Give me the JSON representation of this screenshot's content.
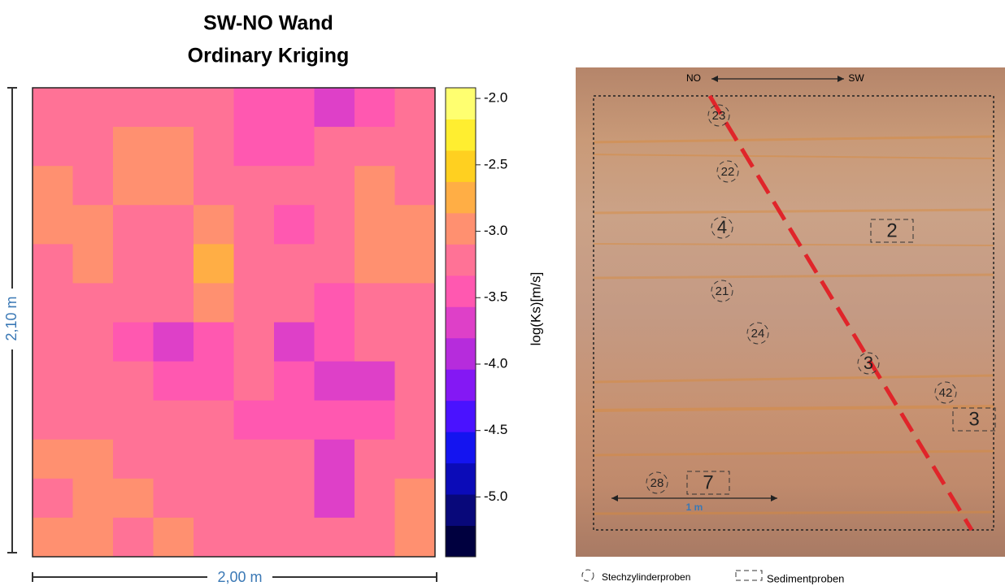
{
  "chart_data": {
    "type": "heatmap",
    "title": "SW-NO Wand",
    "subtitle": "Ordinary Kriging",
    "x_label": "2,00 m",
    "y_label": "2,10 m",
    "values": [
      [
        -3.2,
        -3.3,
        -3.1,
        -3.2,
        -3.3,
        -3.4,
        -3.5,
        -3.6,
        -3.4,
        -3.3
      ],
      [
        -3.1,
        -3.2,
        -3.0,
        -2.9,
        -3.2,
        -3.5,
        -3.4,
        -3.3,
        -3.2,
        -3.2
      ],
      [
        -3.0,
        -3.1,
        -2.9,
        -3.0,
        -3.2,
        -3.3,
        -3.2,
        -3.1,
        -3.0,
        -3.1
      ],
      [
        -2.9,
        -3.0,
        -3.1,
        -3.2,
        -3.0,
        -3.1,
        -3.5,
        -3.2,
        -3.0,
        -2.9
      ],
      [
        -3.1,
        -3.0,
        -3.2,
        -3.1,
        -2.8,
        -3.2,
        -3.3,
        -3.1,
        -2.9,
        -3.0
      ],
      [
        -3.2,
        -3.1,
        -3.3,
        -3.2,
        -2.9,
        -3.3,
        -3.2,
        -3.4,
        -3.2,
        -3.1
      ],
      [
        -3.3,
        -3.2,
        -3.4,
        -3.6,
        -3.4,
        -3.3,
        -3.6,
        -3.5,
        -3.3,
        -3.2
      ],
      [
        -3.2,
        -3.3,
        -3.3,
        -3.5,
        -3.5,
        -3.3,
        -3.5,
        -3.8,
        -3.6,
        -3.3
      ],
      [
        -3.1,
        -3.2,
        -3.3,
        -3.2,
        -3.3,
        -3.4,
        -3.4,
        -3.5,
        -3.4,
        -3.2
      ],
      [
        -3.0,
        -2.9,
        -3.1,
        -3.2,
        -3.3,
        -3.2,
        -3.3,
        -3.6,
        -3.3,
        -3.1
      ],
      [
        -3.1,
        -3.0,
        -2.9,
        -3.1,
        -3.2,
        -3.1,
        -3.3,
        -3.7,
        -3.2,
        -3.0
      ],
      [
        -2.9,
        -3.0,
        -3.1,
        -3.0,
        -3.2,
        -3.1,
        -3.2,
        -3.3,
        -3.1,
        -3.0
      ]
    ],
    "colorbar": {
      "label": "log(Ks)[m/s]",
      "lim": [
        -5.45,
        -1.92
      ],
      "ticks": [
        {
          "value": -2,
          "label": "-2.0"
        },
        {
          "value": -2.5,
          "label": "-2.5"
        },
        {
          "value": -3,
          "label": "-3.0"
        },
        {
          "value": -3.5,
          "label": "-3.5"
        },
        {
          "value": -4,
          "label": "-4.0"
        },
        {
          "value": -4.5,
          "label": "-4.5"
        },
        {
          "value": -5,
          "label": "-5.0"
        }
      ],
      "colors": [
        "#00003f",
        "#08087a",
        "#0b0bb8",
        "#1414f0",
        "#4a12ff",
        "#8418f4",
        "#b62cdc",
        "#de40c8",
        "#ff58b0",
        "#ff7296",
        "#ff9070",
        "#ffae45",
        "#ffd020",
        "#ffee30",
        "#ffff70"
      ]
    }
  },
  "photo": {
    "arrow_left": "NO",
    "arrow_right": "SW",
    "scale": "1 m",
    "circles": [
      "23",
      "22",
      "4",
      "21",
      "24",
      "3",
      "42",
      "28"
    ],
    "boxes": [
      "2",
      "3",
      "7"
    ],
    "legend": [
      "Stechzylinderproben",
      "Sedimentproben"
    ]
  }
}
